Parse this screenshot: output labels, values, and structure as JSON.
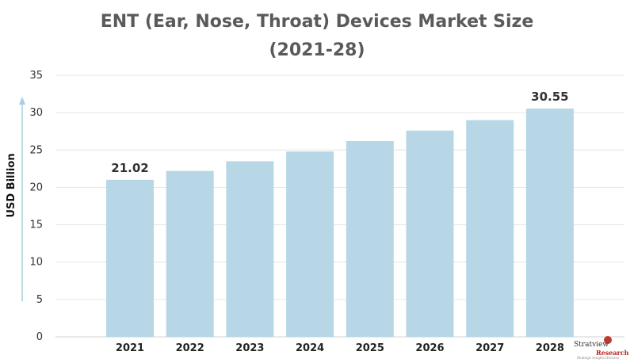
{
  "chart_data": {
    "type": "bar",
    "title_line1": "ENT (Ear, Nose, Throat) Devices Market Size",
    "title_line2": "(2021-28)",
    "ylabel": "USD Billion",
    "xlabel": "",
    "categories": [
      "2021",
      "2022",
      "2023",
      "2024",
      "2025",
      "2026",
      "2027",
      "2028"
    ],
    "values": [
      21.02,
      22.2,
      23.5,
      24.8,
      26.2,
      27.6,
      29.0,
      30.55
    ],
    "data_labels": [
      {
        "index": 0,
        "text": "21.02"
      },
      {
        "index": 7,
        "text": "30.55"
      }
    ],
    "ylim": [
      0,
      35
    ],
    "yticks": [
      0,
      5,
      10,
      15,
      20,
      25,
      30,
      35
    ],
    "grid": true,
    "bar_color": "#b7d7e6",
    "legend": "none"
  },
  "brand": {
    "name": "Stratview",
    "sub": "Research",
    "tagline": "Strategic Insights Decisive"
  }
}
